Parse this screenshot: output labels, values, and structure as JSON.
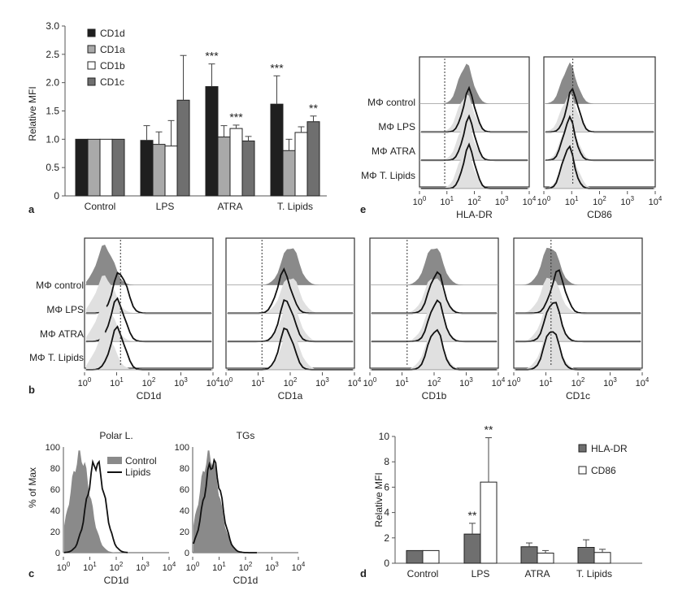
{
  "chart_data": [
    {
      "panel": "a",
      "type": "bar",
      "ylabel": "Relative MFI",
      "ylim": [
        0,
        3.0
      ],
      "yticks": [
        "0",
        "0.5",
        "1.0",
        "1.5",
        "2.0",
        "2.5",
        "3.0"
      ],
      "categories": [
        "Control",
        "LPS",
        "ATRA",
        "T. Lipids"
      ],
      "legend_position": "top-left",
      "series": [
        {
          "name": "CD1d",
          "color": "#1f1f1f",
          "values": [
            1.0,
            0.98,
            1.93,
            1.62
          ],
          "errors": [
            0,
            0.26,
            0.4,
            0.5
          ]
        },
        {
          "name": "CD1a",
          "color": "#a9a9a9",
          "values": [
            1.0,
            0.91,
            1.04,
            0.8
          ],
          "errors": [
            0,
            0.22,
            0.2,
            0.2
          ]
        },
        {
          "name": "CD1b",
          "color": "#ffffff",
          "values": [
            1.0,
            0.88,
            1.19,
            1.12
          ],
          "errors": [
            0,
            0.45,
            0.06,
            0.1
          ]
        },
        {
          "name": "CD1c",
          "color": "#6f6f6f",
          "values": [
            1.0,
            1.69,
            0.97,
            1.31
          ],
          "errors": [
            0,
            0.79,
            0.08,
            0.1
          ]
        }
      ],
      "annotations": [
        {
          "category": "ATRA",
          "series": "CD1d",
          "text": "***"
        },
        {
          "category": "ATRA",
          "series": "CD1b",
          "text": "***"
        },
        {
          "category": "T. Lipids",
          "series": "CD1d",
          "text": "***"
        },
        {
          "category": "T. Lipids",
          "series": "CD1c",
          "text": "**"
        }
      ]
    },
    {
      "panel": "d",
      "type": "bar",
      "ylabel": "Relative MFI",
      "ylim": [
        0,
        10
      ],
      "yticks": [
        "0",
        "2",
        "4",
        "6",
        "8",
        "10"
      ],
      "categories": [
        "Control",
        "LPS",
        "ATRA",
        "T. Lipids"
      ],
      "legend_position": "top-right",
      "series": [
        {
          "name": "HLA-DR",
          "color": "#6f6f6f",
          "values": [
            1.0,
            2.3,
            1.3,
            1.25
          ],
          "errors": [
            0,
            0.85,
            0.3,
            0.6
          ]
        },
        {
          "name": "CD86",
          "color": "#ffffff",
          "values": [
            1.0,
            6.4,
            0.8,
            0.85
          ],
          "errors": [
            0,
            3.5,
            0.2,
            0.25
          ]
        }
      ],
      "annotations": [
        {
          "category": "LPS",
          "series": "HLA-DR",
          "text": "**"
        },
        {
          "category": "LPS",
          "series": "CD86",
          "text": "**"
        }
      ]
    }
  ],
  "panel_letters": {
    "a": "a",
    "b": "b",
    "c": "c",
    "d": "d",
    "e": "e"
  },
  "histogram_rows": [
    "MΦ control",
    "MΦ LPS",
    "MΦ ATRA",
    "MΦ T. Lipids"
  ],
  "log_ticks": {
    "t0": "10",
    "e0": "0",
    "t1": "10",
    "e1": "1",
    "t2": "10",
    "e2": "2",
    "t3": "10",
    "e3": "3",
    "t4": "10",
    "e4": "4"
  },
  "panel_b_xlabels": [
    "CD1d",
    "CD1a",
    "CD1b",
    "CD1c"
  ],
  "panel_e_xlabels": [
    "HLA-DR",
    "CD86"
  ],
  "panel_c": {
    "titles": [
      "Polar L.",
      "TGs"
    ],
    "ylabel": "% of Max",
    "yticks": [
      "0",
      "20",
      "40",
      "60",
      "80",
      "100"
    ],
    "xlabel": "CD1d",
    "legend": [
      "Control",
      "Lipids"
    ]
  }
}
